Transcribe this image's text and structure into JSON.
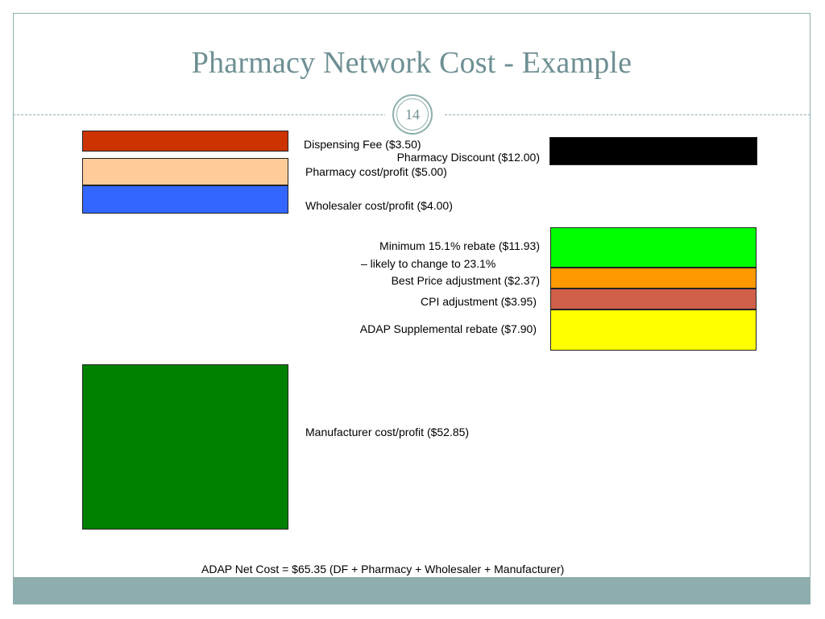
{
  "slide": {
    "title": "Pharmacy Network Cost - Example",
    "page_number": "14",
    "footer_text": "ADAP Net Cost = $65.35 (DF + Pharmacy + Wholesaler + Manufacturer)"
  },
  "cost_components": [
    {
      "label": "Dispensing Fee ($3.50)",
      "amount": 3.5,
      "color": "#cc3300"
    },
    {
      "label": "Pharmacy cost/profit ($5.00)",
      "amount": 5.0,
      "color": "#ffcc99"
    },
    {
      "label": "Wholesaler cost/profit ($4.00)",
      "amount": 4.0,
      "color": "#3366ff"
    },
    {
      "label": "Manufacturer cost/profit ($52.85)",
      "amount": 52.85,
      "color": "#008000"
    }
  ],
  "discount_components": [
    {
      "label": "Pharmacy Discount ($12.00)",
      "amount": 12.0,
      "color": "#000000"
    },
    {
      "label_line1": "Minimum 15.1% rebate ($11.93)",
      "label_line2": "– likely to change to 23.1%",
      "amount": 11.93,
      "color": "#00ff00"
    },
    {
      "label": "Best Price adjustment ($2.37)",
      "amount": 2.37,
      "color": "#ff9900"
    },
    {
      "label": "CPI adjustment ($3.95)",
      "amount": 3.95,
      "color": "#d0604a"
    },
    {
      "label": "ADAP Supplemental rebate ($7.90)",
      "amount": 7.9,
      "color": "#ffff00"
    }
  ],
  "theme": {
    "accent": "#8eaeae",
    "title_color": "#6d8f93"
  }
}
